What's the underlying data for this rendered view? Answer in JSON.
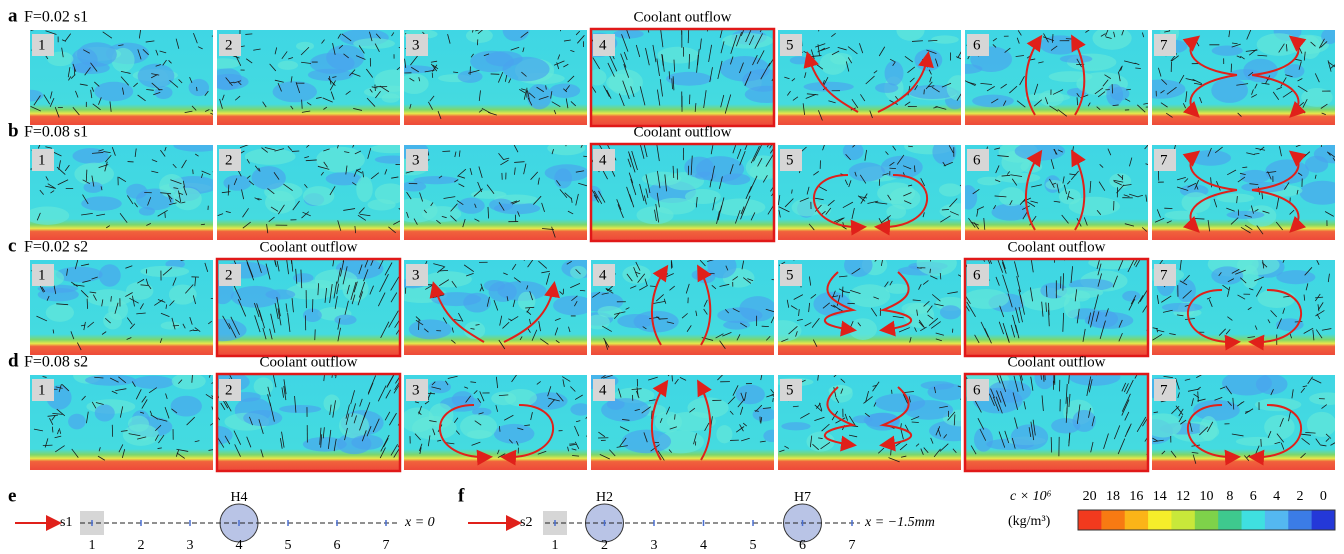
{
  "rows": [
    {
      "letter": "a",
      "label": "F=0.02 s1",
      "panels": [
        {
          "label": "1"
        },
        {
          "label": "2"
        },
        {
          "label": "3"
        },
        {
          "label": "4",
          "annotation": "Coolant outflow"
        },
        {
          "label": "5"
        },
        {
          "label": "6"
        },
        {
          "label": "7"
        }
      ]
    },
    {
      "letter": "b",
      "label": "F=0.08 s1",
      "panels": [
        {
          "label": "1"
        },
        {
          "label": "2"
        },
        {
          "label": "3"
        },
        {
          "label": "4",
          "annotation": "Coolant outflow"
        },
        {
          "label": "5"
        },
        {
          "label": "6"
        },
        {
          "label": "7"
        }
      ]
    },
    {
      "letter": "c",
      "label": "F=0.02 s2",
      "panels": [
        {
          "label": "1"
        },
        {
          "label": "2",
          "annotation": "Coolant outflow"
        },
        {
          "label": "3"
        },
        {
          "label": "4"
        },
        {
          "label": "5"
        },
        {
          "label": "6",
          "annotation": "Coolant outflow"
        },
        {
          "label": "7"
        }
      ]
    },
    {
      "letter": "d",
      "label": "F=0.08 s2",
      "panels": [
        {
          "label": "1"
        },
        {
          "label": "2",
          "annotation": "Coolant outflow"
        },
        {
          "label": "3"
        },
        {
          "label": "4"
        },
        {
          "label": "5"
        },
        {
          "label": "6",
          "annotation": "Coolant outflow"
        },
        {
          "label": "7"
        }
      ]
    }
  ],
  "schematics": [
    {
      "letter": "e",
      "source": "s1",
      "position": "x = 0",
      "stations": [
        {
          "label": "1"
        },
        {
          "label": "2"
        },
        {
          "label": "3"
        },
        {
          "label": "4",
          "hole": "H4"
        },
        {
          "label": "5"
        },
        {
          "label": "6"
        },
        {
          "label": "7"
        }
      ]
    },
    {
      "letter": "f",
      "source": "s2",
      "position": "x = −1.5mm",
      "stations": [
        {
          "label": "1"
        },
        {
          "label": "2",
          "hole": "H2"
        },
        {
          "label": "3"
        },
        {
          "label": "4"
        },
        {
          "label": "5"
        },
        {
          "label": "6",
          "hole": "H7"
        },
        {
          "label": "7"
        }
      ]
    }
  ],
  "colorbar": {
    "title": "c × 10⁶",
    "unit": "(kg/m³)",
    "ticks": [
      20,
      18,
      16,
      14,
      12,
      10,
      8,
      6,
      4,
      2,
      0
    ],
    "colors": [
      "#f23a1e",
      "#f77a12",
      "#fbb418",
      "#f6ee2a",
      "#c8e83a",
      "#7ed24a",
      "#3ec98e",
      "#3fe0e0",
      "#54b8f0",
      "#3b7ce6",
      "#2438d8"
    ]
  }
}
